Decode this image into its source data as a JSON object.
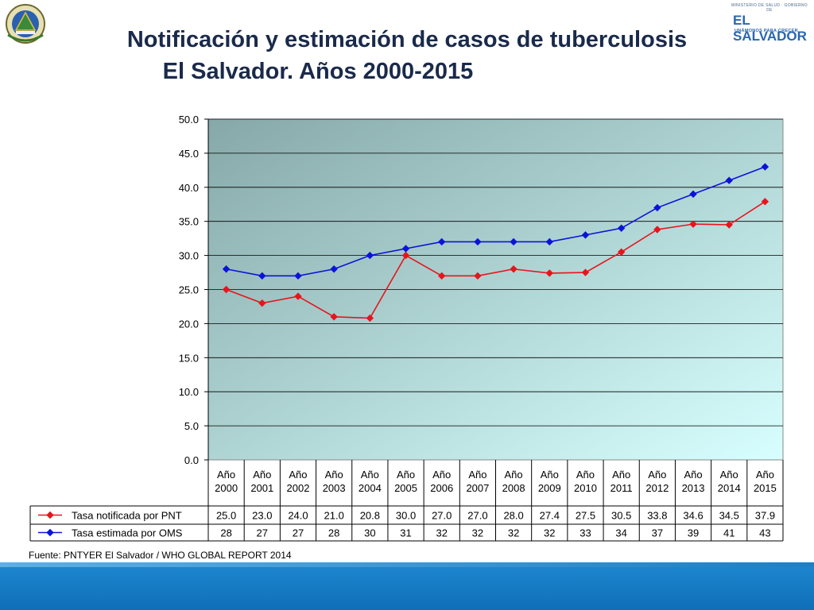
{
  "header": {
    "title_line1": "Notificación y estimación de casos de tuberculosis",
    "title_line2": "El Salvador. Años 2000-2015",
    "logo": {
      "ministry": "MINISTERIO DE SALUD · GOBIERNO DE",
      "name": "EL SALVADOR",
      "slogan": "UNÁMONOS PARA CRECER"
    }
  },
  "footer": {
    "source": "Fuente: PNTYER El Salvador / WHO GLOBAL REPORT 2014"
  },
  "colors": {
    "red_series": "#e8141c",
    "blue_series": "#0a14d8",
    "plot_bg_start": "#86a8a8",
    "plot_bg_end": "#d8ffff"
  },
  "chart_data": {
    "type": "line",
    "title": "",
    "xlabel": "",
    "ylabel": "",
    "ylim": [
      0,
      50
    ],
    "yticks": [
      "0.0",
      "5.0",
      "10.0",
      "15.0",
      "20.0",
      "25.0",
      "30.0",
      "35.0",
      "40.0",
      "45.0",
      "50.0"
    ],
    "grid": true,
    "legend": "data-table-below",
    "categories": [
      [
        "Año",
        "2000"
      ],
      [
        "Año",
        "2001"
      ],
      [
        "Año",
        "2002"
      ],
      [
        "Año",
        "2003"
      ],
      [
        "Año",
        "2004"
      ],
      [
        "Año",
        "2005"
      ],
      [
        "Año",
        "2006"
      ],
      [
        "Año",
        "2007"
      ],
      [
        "Año",
        "2008"
      ],
      [
        "Año",
        "2009"
      ],
      [
        "Año",
        "2010"
      ],
      [
        "Año",
        "2011"
      ],
      [
        "Año",
        "2012"
      ],
      [
        "Año",
        "2013"
      ],
      [
        "Año",
        "2014"
      ],
      [
        "Año",
        "2015"
      ]
    ],
    "series": [
      {
        "name": "Tasa notificada por PNT",
        "color": "#e8141c",
        "values": [
          25.0,
          23.0,
          24.0,
          21.0,
          20.8,
          30.0,
          27.0,
          27.0,
          28.0,
          27.4,
          27.5,
          30.5,
          33.8,
          34.6,
          34.5,
          37.9
        ],
        "labels": [
          "25.0",
          "23.0",
          "24.0",
          "21.0",
          "20.8",
          "30.0",
          "27.0",
          "27.0",
          "28.0",
          "27.4",
          "27.5",
          "30.5",
          "33.8",
          "34.6",
          "34.5",
          "37.9"
        ]
      },
      {
        "name": "Tasa estimada por OMS",
        "color": "#0a14d8",
        "values": [
          28,
          27,
          27,
          28,
          30,
          31,
          32,
          32,
          32,
          32,
          33,
          34,
          37,
          39,
          41,
          43
        ],
        "labels": [
          "28",
          "27",
          "27",
          "28",
          "30",
          "31",
          "32",
          "32",
          "32",
          "32",
          "33",
          "34",
          "37",
          "39",
          "41",
          "43"
        ]
      }
    ]
  }
}
